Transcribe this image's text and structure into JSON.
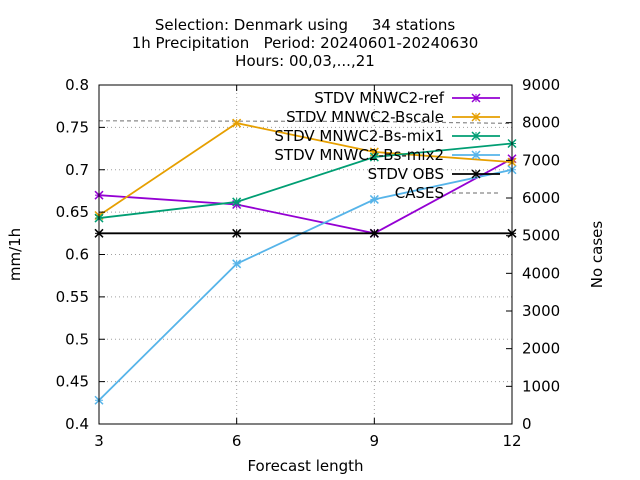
{
  "chart_data": {
    "type": "line",
    "title_lines": [
      "Selection: Denmark using     34 stations",
      "1h Precipitation   Period: 20240601-20240630",
      "Hours: 00,03,...,21"
    ],
    "xlabel": "Forecast length",
    "ylabel": "mm/1h",
    "y2label": "No cases",
    "x": [
      3,
      6,
      9,
      12
    ],
    "xlim": [
      3,
      12
    ],
    "ylim": [
      0.4,
      0.8
    ],
    "y2lim": [
      0,
      9000
    ],
    "x_ticks": [
      "3",
      "6",
      "9",
      "12"
    ],
    "y_ticks": [
      "0.4",
      "0.45",
      "0.5",
      "0.55",
      "0.6",
      "0.65",
      "0.7",
      "0.75",
      "0.8"
    ],
    "y2_ticks": [
      "0",
      "1000",
      "2000",
      "3000",
      "4000",
      "5000",
      "6000",
      "7000",
      "8000",
      "9000"
    ],
    "grid": true,
    "legend_position": "top-right",
    "series": [
      {
        "name": "STDV MNWC2-ref",
        "color": "#9400d3",
        "values": [
          0.67,
          0.659,
          0.625,
          0.713
        ],
        "marker": "x",
        "axis": "y"
      },
      {
        "name": "STDV MNWC2-Bscale",
        "color": "#e69f00",
        "values": [
          0.646,
          0.755,
          0.721,
          0.709
        ],
        "marker": "x",
        "axis": "y"
      },
      {
        "name": "STDV MNWC2-Bs-mix1",
        "color": "#009e73",
        "values": [
          0.643,
          0.662,
          0.715,
          0.731
        ],
        "marker": "x",
        "axis": "y"
      },
      {
        "name": "STDV MNWC2-Bs-mix2",
        "color": "#56b4e9",
        "values": [
          0.428,
          0.589,
          0.665,
          0.7
        ],
        "marker": "x",
        "axis": "y"
      },
      {
        "name": "STDV OBS",
        "color": "#000000",
        "values": [
          0.625,
          0.625,
          0.625,
          0.625
        ],
        "marker": "x",
        "axis": "y"
      },
      {
        "name": "CASES",
        "color": "#888888",
        "values": [
          8050,
          8040,
          8030,
          7980
        ],
        "marker": "none",
        "axis": "y2",
        "dashed": true
      }
    ]
  }
}
